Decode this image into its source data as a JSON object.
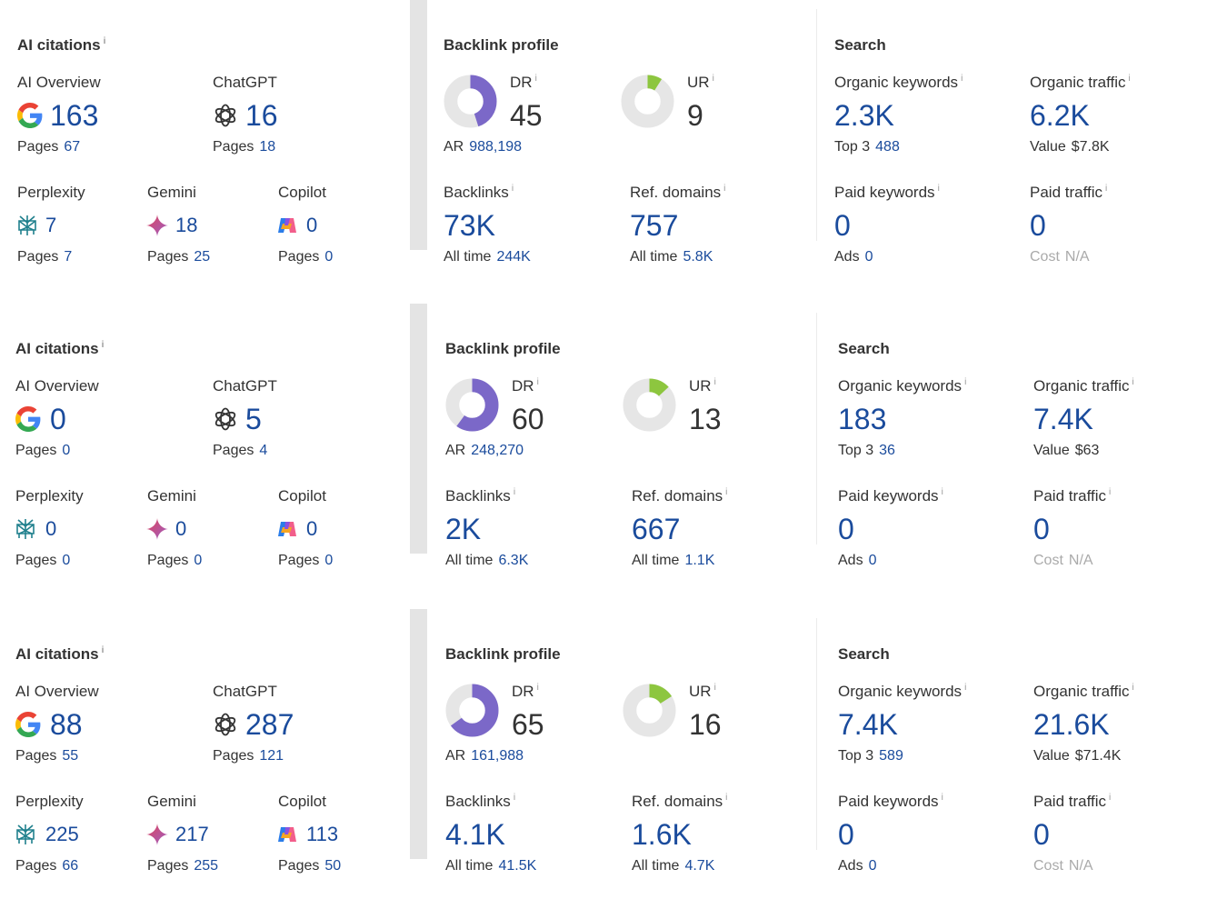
{
  "sections": [
    {
      "ai": {
        "title": "AI citations",
        "info": "i",
        "overview": {
          "label": "AI Overview",
          "value": "163",
          "pages_label": "Pages",
          "pages": "67"
        },
        "chatgpt": {
          "label": "ChatGPT",
          "value": "16",
          "pages_label": "Pages",
          "pages": "18"
        },
        "perplexity": {
          "label": "Perplexity",
          "value": "7",
          "pages_label": "Pages",
          "pages": "7"
        },
        "gemini": {
          "label": "Gemini",
          "value": "18",
          "pages_label": "Pages",
          "pages": "25"
        },
        "copilot": {
          "label": "Copilot",
          "value": "0",
          "pages_label": "Pages",
          "pages": "0"
        }
      },
      "backlink": {
        "title": "Backlink profile",
        "dr": {
          "label": "DR",
          "value": "45",
          "fraction": 0.45
        },
        "ar": {
          "label": "AR",
          "value": "988,198"
        },
        "ur": {
          "label": "UR",
          "value": "9",
          "fraction": 0.09
        },
        "backlinks": {
          "label": "Backlinks",
          "value": "73K",
          "sub_label": "All time",
          "sub_value": "244K"
        },
        "ref_domains": {
          "label": "Ref. domains",
          "value": "757",
          "sub_label": "All time",
          "sub_value": "5.8K"
        }
      },
      "search": {
        "title": "Search",
        "organic_keywords": {
          "label": "Organic keywords",
          "value": "2.3K",
          "sub_label": "Top 3",
          "sub_value": "488"
        },
        "organic_traffic": {
          "label": "Organic traffic",
          "value": "6.2K",
          "sub_label": "Value",
          "sub_value": "$7.8K"
        },
        "paid_keywords": {
          "label": "Paid keywords",
          "value": "0",
          "sub_label": "Ads",
          "sub_value": "0"
        },
        "paid_traffic": {
          "label": "Paid traffic",
          "value": "0",
          "sub_label": "Cost",
          "sub_value": "N/A"
        }
      }
    },
    {
      "ai": {
        "title": "AI citations",
        "info": "i",
        "overview": {
          "label": "AI Overview",
          "value": "0",
          "pages_label": "Pages",
          "pages": "0"
        },
        "chatgpt": {
          "label": "ChatGPT",
          "value": "5",
          "pages_label": "Pages",
          "pages": "4"
        },
        "perplexity": {
          "label": "Perplexity",
          "value": "0",
          "pages_label": "Pages",
          "pages": "0"
        },
        "gemini": {
          "label": "Gemini",
          "value": "0",
          "pages_label": "Pages",
          "pages": "0"
        },
        "copilot": {
          "label": "Copilot",
          "value": "0",
          "pages_label": "Pages",
          "pages": "0"
        }
      },
      "backlink": {
        "title": "Backlink profile",
        "dr": {
          "label": "DR",
          "value": "60",
          "fraction": 0.6
        },
        "ar": {
          "label": "AR",
          "value": "248,270"
        },
        "ur": {
          "label": "UR",
          "value": "13",
          "fraction": 0.13
        },
        "backlinks": {
          "label": "Backlinks",
          "value": "2K",
          "sub_label": "All time",
          "sub_value": "6.3K"
        },
        "ref_domains": {
          "label": "Ref. domains",
          "value": "667",
          "sub_label": "All time",
          "sub_value": "1.1K"
        }
      },
      "search": {
        "title": "Search",
        "organic_keywords": {
          "label": "Organic keywords",
          "value": "183",
          "sub_label": "Top 3",
          "sub_value": "36"
        },
        "organic_traffic": {
          "label": "Organic traffic",
          "value": "7.4K",
          "sub_label": "Value",
          "sub_value": "$63"
        },
        "paid_keywords": {
          "label": "Paid keywords",
          "value": "0",
          "sub_label": "Ads",
          "sub_value": "0"
        },
        "paid_traffic": {
          "label": "Paid traffic",
          "value": "0",
          "sub_label": "Cost",
          "sub_value": "N/A"
        }
      }
    },
    {
      "ai": {
        "title": "AI citations",
        "info": "i",
        "overview": {
          "label": "AI Overview",
          "value": "88",
          "pages_label": "Pages",
          "pages": "55"
        },
        "chatgpt": {
          "label": "ChatGPT",
          "value": "287",
          "pages_label": "Pages",
          "pages": "121"
        },
        "perplexity": {
          "label": "Perplexity",
          "value": "225",
          "pages_label": "Pages",
          "pages": "66"
        },
        "gemini": {
          "label": "Gemini",
          "value": "217",
          "pages_label": "Pages",
          "pages": "255"
        },
        "copilot": {
          "label": "Copilot",
          "value": "113",
          "pages_label": "Pages",
          "pages": "50"
        }
      },
      "backlink": {
        "title": "Backlink profile",
        "dr": {
          "label": "DR",
          "value": "65",
          "fraction": 0.65
        },
        "ar": {
          "label": "AR",
          "value": "161,988"
        },
        "ur": {
          "label": "UR",
          "value": "16",
          "fraction": 0.16
        },
        "backlinks": {
          "label": "Backlinks",
          "value": "4.1K",
          "sub_label": "All time",
          "sub_value": "41.5K"
        },
        "ref_domains": {
          "label": "Ref. domains",
          "value": "1.6K",
          "sub_label": "All time",
          "sub_value": "4.7K"
        }
      },
      "search": {
        "title": "Search",
        "organic_keywords": {
          "label": "Organic keywords",
          "value": "7.4K",
          "sub_label": "Top 3",
          "sub_value": "589"
        },
        "organic_traffic": {
          "label": "Organic traffic",
          "value": "21.6K",
          "sub_label": "Value",
          "sub_value": "$71.4K"
        },
        "paid_keywords": {
          "label": "Paid keywords",
          "value": "0",
          "sub_label": "Ads",
          "sub_value": "0"
        },
        "paid_traffic": {
          "label": "Paid traffic",
          "value": "0",
          "sub_label": "Cost",
          "sub_value": "N/A"
        }
      }
    }
  ],
  "colors": {
    "value_blue": "#1a4b9c",
    "dr_purple": "#7b68c8",
    "ur_green": "#8dc63f",
    "donut_track": "#e6e6e6",
    "separator": "#e4e4e4"
  },
  "icons": {
    "overview": "google-icon",
    "chatgpt": "openai-icon",
    "perplexity": "perplexity-icon",
    "gemini": "gemini-icon",
    "copilot": "copilot-icon"
  }
}
